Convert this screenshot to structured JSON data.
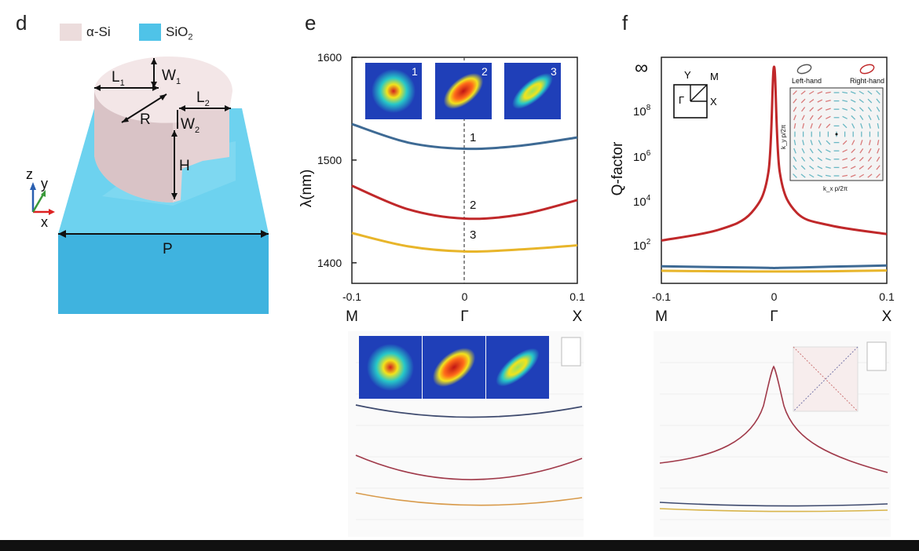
{
  "panels": {
    "d": {
      "letter": "d",
      "legend": [
        {
          "label": "α-Si",
          "color": "#ecdcdc"
        },
        {
          "label": "SiO",
          "sub": "2",
          "color": "#4fc3e8"
        }
      ],
      "dims": {
        "L": "L",
        "L1sub": "1",
        "W1sub": "1",
        "L2sub": "2",
        "W2sub": "2",
        "R": "R",
        "W": "W",
        "H": "H",
        "P": "P"
      },
      "axes": {
        "z": "z",
        "y": "y",
        "x": "x"
      }
    },
    "e": {
      "letter": "e",
      "ylabel": "λ(nm)",
      "inset_numbers": [
        "1",
        "2",
        "3"
      ],
      "curve_labels": [
        "1",
        "2",
        "3"
      ]
    },
    "f": {
      "letter": "f",
      "ylabel": "Q-factor",
      "ytick_inf": "∞",
      "ytick_base": "10",
      "ytick_exps": [
        "8",
        "6",
        "4",
        "2"
      ],
      "bz_labels": {
        "Y": "Y",
        "M": "M",
        "G": "Γ",
        "X": "X"
      },
      "polar_left": "Left-hand",
      "polar_right": "Right-hand",
      "inset_ylabel": "k_y p/2π",
      "inset_xlabel": "k_x p/2π"
    }
  },
  "chart_data": [
    {
      "type": "line",
      "title": "",
      "xlabel": "",
      "ylabel": "λ(nm)",
      "x_ticks": [
        "-0.1",
        "0",
        "0.1"
      ],
      "x_symmetry_labels": [
        "M",
        "Γ",
        "X"
      ],
      "y_ticks": [
        "1600",
        "1500",
        "1400"
      ],
      "xlim": [
        -0.1,
        0.1
      ],
      "ylim": [
        1380,
        1600
      ],
      "x": [
        -0.1,
        -0.05,
        0,
        0.05,
        0.1
      ],
      "series": [
        {
          "name": "1",
          "color": "#3e6a94",
          "values": [
            1535,
            1517,
            1511,
            1514,
            1522
          ]
        },
        {
          "name": "2",
          "color": "#c0282a",
          "values": [
            1475,
            1452,
            1443,
            1447,
            1461
          ]
        },
        {
          "name": "3",
          "color": "#e8b52a",
          "values": [
            1429,
            1416,
            1411,
            1413,
            1417
          ]
        }
      ]
    },
    {
      "type": "line",
      "title": "",
      "xlabel": "",
      "ylabel": "Q-factor",
      "x_ticks": [
        "-0.1",
        "0",
        "0.1"
      ],
      "x_symmetry_labels": [
        "M",
        "Γ",
        "X"
      ],
      "y_scale": "log",
      "y_ticks": [
        "∞",
        "10^8",
        "10^6",
        "10^4",
        "10^2"
      ],
      "xlim": [
        -0.1,
        0.1
      ],
      "x": [
        -0.1,
        -0.05,
        -0.02,
        -0.005,
        0,
        0.005,
        0.02,
        0.05,
        0.1
      ],
      "series": [
        {
          "color": "#c0282a",
          "values": [
            170,
            500,
            3000,
            200000,
            10000000000.0,
            200000,
            3000,
            800,
            330
          ]
        },
        {
          "color": "#3e6a94",
          "values": [
            12,
            11,
            10.5,
            10.2,
            10,
            10.2,
            10.5,
            11.5,
            13
          ]
        },
        {
          "color": "#e8b52a",
          "values": [
            7.5,
            7.2,
            7,
            7,
            7,
            7,
            7,
            7.2,
            7.8
          ]
        }
      ]
    }
  ]
}
